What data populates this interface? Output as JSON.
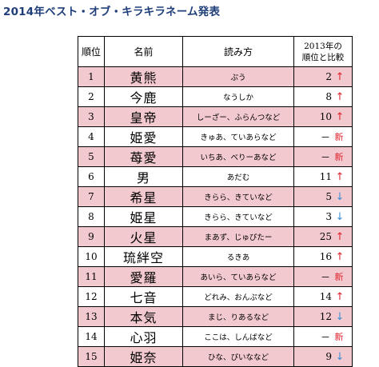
{
  "title": "2014年ベスト・オブ・キラキラネーム発表",
  "colors": {
    "title": "#1f3e7a",
    "row_highlight": "#f2c9cf",
    "arrow_up": "#e0242e",
    "arrow_down": "#3a8fd6",
    "new_badge": "#e0242e"
  },
  "table": {
    "headers": {
      "rank": "順位",
      "name": "名前",
      "reading": "読み方",
      "prev_line1": "2013年の",
      "prev_line2": "順位と比較"
    },
    "rows": [
      {
        "rank": "1",
        "name": "黄熊",
        "reading": "ぷう",
        "prev": "2",
        "change": "↑",
        "change_type": "up",
        "highlight": true
      },
      {
        "rank": "2",
        "name": "今鹿",
        "reading": "なうしか",
        "prev": "8",
        "change": "↑",
        "change_type": "up",
        "highlight": false
      },
      {
        "rank": "3",
        "name": "皇帝",
        "reading": "しーざー、ふらんつなど",
        "prev": "10",
        "change": "↑",
        "change_type": "up",
        "highlight": true
      },
      {
        "rank": "4",
        "name": "姫愛",
        "reading": "きゅあ、ていあらなど",
        "prev": "－",
        "change": "新",
        "change_type": "new",
        "highlight": false
      },
      {
        "rank": "5",
        "name": "苺愛",
        "reading": "いちあ、べりーあなど",
        "prev": "－",
        "change": "新",
        "change_type": "new",
        "highlight": true
      },
      {
        "rank": "6",
        "name": "男",
        "reading": "あだむ",
        "prev": "11",
        "change": "↑",
        "change_type": "up",
        "highlight": false
      },
      {
        "rank": "7",
        "name": "希星",
        "reading": "きらら、きていなど",
        "prev": "5",
        "change": "↓",
        "change_type": "down",
        "highlight": true
      },
      {
        "rank": "8",
        "name": "姫星",
        "reading": "きらら、きていなど",
        "prev": "3",
        "change": "↓",
        "change_type": "down",
        "highlight": false
      },
      {
        "rank": "9",
        "name": "火星",
        "reading": "まあず、じゅぴたー",
        "prev": "25",
        "change": "↑",
        "change_type": "up",
        "highlight": true
      },
      {
        "rank": "10",
        "name": "琉絆空",
        "reading": "るきあ",
        "prev": "16",
        "change": "↑",
        "change_type": "up",
        "highlight": false
      },
      {
        "rank": "11",
        "name": "愛羅",
        "reading": "あいら、ていあらなど",
        "prev": "－",
        "change": "新",
        "change_type": "new",
        "highlight": true
      },
      {
        "rank": "12",
        "name": "七音",
        "reading": "どれみ、おんぷなど",
        "prev": "14",
        "change": "↑",
        "change_type": "up",
        "highlight": false
      },
      {
        "rank": "13",
        "name": "本気",
        "reading": "まじ、りあるなど",
        "prev": "12",
        "change": "↓",
        "change_type": "down",
        "highlight": true
      },
      {
        "rank": "14",
        "name": "心羽",
        "reading": "ここは、しんばなど",
        "prev": "－",
        "change": "新",
        "change_type": "new",
        "highlight": false
      },
      {
        "rank": "15",
        "name": "姫奈",
        "reading": "ひな、ぴいななど",
        "prev": "9",
        "change": "↓",
        "change_type": "down",
        "highlight": true
      }
    ]
  }
}
